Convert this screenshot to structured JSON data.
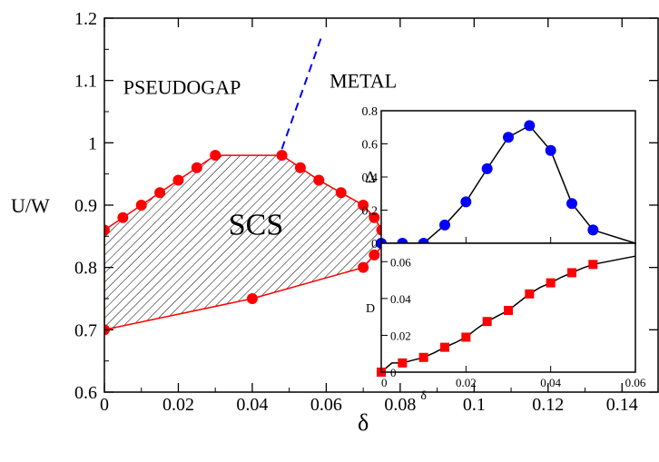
{
  "chart_data": [
    {
      "type": "scatter",
      "role": "main phase diagram",
      "xlabel": "δ",
      "ylabel": "U/W",
      "xlim": [
        0,
        0.15
      ],
      "ylim": [
        0.6,
        1.2
      ],
      "xticks": [
        0,
        0.02,
        0.04,
        0.06,
        0.08,
        0.1,
        0.12,
        0.14
      ],
      "xtick_labels": [
        "0",
        "0.02",
        "0.04",
        "0.06",
        "0.08",
        "0.1",
        "0.12",
        "0.14"
      ],
      "yticks": [
        0.6,
        0.7,
        0.8,
        0.9,
        1.0,
        1.1,
        1.2
      ],
      "ytick_labels": [
        "0.6",
        "0.7",
        "0.8",
        "0.9",
        "1",
        "1.1",
        "1.2"
      ],
      "grid": false,
      "series": [
        {
          "name": "",
          "style": "red circles, red outline, hatched interior",
          "color": "#ff0000",
          "points": [
            [
              0.0,
              0.86
            ],
            [
              0.005,
              0.88
            ],
            [
              0.01,
              0.9
            ],
            [
              0.015,
              0.92
            ],
            [
              0.02,
              0.94
            ],
            [
              0.025,
              0.96
            ],
            [
              0.03,
              0.98
            ],
            [
              0.048,
              0.98
            ],
            [
              0.053,
              0.96
            ],
            [
              0.058,
              0.94
            ],
            [
              0.064,
              0.92
            ],
            [
              0.07,
              0.9
            ],
            [
              0.073,
              0.88
            ],
            [
              0.075,
              0.86
            ],
            [
              0.076,
              0.84
            ],
            [
              0.073,
              0.82
            ],
            [
              0.07,
              0.8
            ],
            [
              0.04,
              0.75
            ],
            [
              0.0,
              0.7
            ]
          ]
        },
        {
          "name": "",
          "style": "dashed blue line",
          "color": "#0000ff",
          "points": [
            [
              0.048,
              0.99
            ],
            [
              0.059,
              1.175
            ]
          ]
        }
      ],
      "annotations": [
        {
          "text": "PSEUDOGAP",
          "x": 0.021,
          "y": 1.09
        },
        {
          "text": "METAL",
          "x": 0.07,
          "y": 1.1
        },
        {
          "text": "SCS",
          "x": 0.041,
          "y": 0.87
        }
      ]
    },
    {
      "type": "line",
      "role": "inset top",
      "xlabel": "",
      "ylabel": "Δ",
      "xlim": [
        0,
        0.06
      ],
      "ylim": [
        0,
        0.8
      ],
      "yticks": [
        0,
        0.2,
        0.4,
        0.6,
        0.8
      ],
      "ytick_labels": [
        "0",
        "0.2",
        "0.4",
        "0.6",
        "0.8"
      ],
      "series": [
        {
          "name": "",
          "marker": "circle",
          "color": "#0000ff",
          "x": [
            0.0,
            0.005,
            0.01,
            0.015,
            0.02,
            0.025,
            0.03,
            0.035,
            0.04,
            0.045,
            0.05,
            0.06
          ],
          "y": [
            0.0,
            0.0,
            0.0,
            0.11,
            0.25,
            0.45,
            0.64,
            0.71,
            0.56,
            0.24,
            0.08,
            0.0
          ],
          "marker_count": 11
        }
      ]
    },
    {
      "type": "line",
      "role": "inset bottom",
      "xlabel": "δ",
      "ylabel": "D",
      "xlim": [
        0,
        0.06
      ],
      "ylim": [
        0,
        0.07
      ],
      "xticks": [
        0,
        0.02,
        0.04,
        0.06
      ],
      "xtick_labels": [
        "0",
        "0.02",
        "0.04",
        "0.06"
      ],
      "yticks": [
        0,
        0.02,
        0.04,
        0.06
      ],
      "ytick_labels": [
        "0",
        "0.02",
        "0.04",
        "0.06"
      ],
      "series": [
        {
          "name": "",
          "marker": "square",
          "color": "#ff0000",
          "x": [
            0.0,
            0.0025,
            0.005,
            0.0075,
            0.01,
            0.0125,
            0.015,
            0.0175,
            0.02,
            0.0225,
            0.025,
            0.0275,
            0.03,
            0.0325,
            0.035,
            0.0375,
            0.04,
            0.0425,
            0.045,
            0.0475,
            0.05,
            0.06
          ],
          "y": [
            0.0,
            0.005,
            0.005,
            0.0065,
            0.008,
            0.0105,
            0.0135,
            0.016,
            0.019,
            0.0235,
            0.0275,
            0.0305,
            0.0335,
            0.038,
            0.0425,
            0.046,
            0.0485,
            0.0515,
            0.054,
            0.0565,
            0.0585,
            0.063
          ],
          "marker_x": [
            0.0,
            0.005,
            0.01,
            0.015,
            0.02,
            0.025,
            0.03,
            0.035,
            0.04,
            0.045,
            0.05
          ],
          "marker_y": [
            0.0,
            0.005,
            0.008,
            0.0135,
            0.019,
            0.0275,
            0.0335,
            0.0425,
            0.0485,
            0.054,
            0.0585
          ]
        }
      ]
    }
  ]
}
